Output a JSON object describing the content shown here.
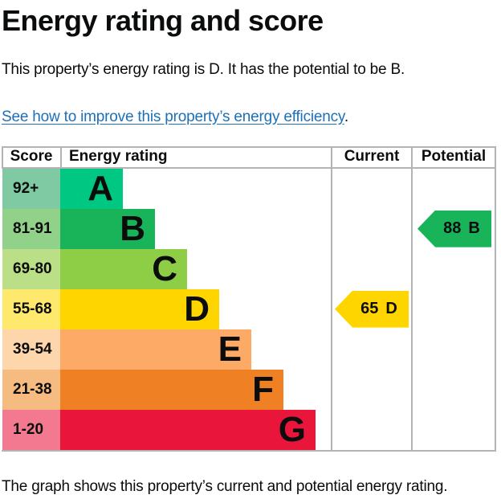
{
  "page": {
    "title": "Energy rating and score",
    "intro": "This property’s energy rating is D. It has the potential to be B.",
    "improve_link_text": "See how to improve this property’s energy efficiency",
    "improve_link_suffix": ".",
    "footer": "The graph shows this property’s current and potential energy rating."
  },
  "colors": {
    "text": "#0b0c0c",
    "link": "#1d70b8",
    "grid_border": "#b1b4b6"
  },
  "table_headers": {
    "score": "Score",
    "rating": "Energy rating",
    "current": "Current",
    "potential": "Potential"
  },
  "chart_data": {
    "type": "bar",
    "orientation": "horizontal",
    "title": "Energy rating and score",
    "columns": [
      "Score",
      "Energy rating",
      "Current",
      "Potential"
    ],
    "bands": [
      {
        "band": "A",
        "score_range": "92+",
        "bar_length": 78,
        "color": "#00c781",
        "score_color": "#7fcaa3"
      },
      {
        "band": "B",
        "score_range": "81-91",
        "bar_length": 118,
        "color": "#19b459",
        "score_color": "#92d189"
      },
      {
        "band": "C",
        "score_range": "69-80",
        "bar_length": 158,
        "color": "#8dce46",
        "score_color": "#badf86"
      },
      {
        "band": "D",
        "score_range": "55-68",
        "bar_length": 198,
        "color": "#ffd500",
        "score_color": "#ffe96d"
      },
      {
        "band": "E",
        "score_range": "39-54",
        "bar_length": 238,
        "color": "#fcaa65",
        "score_color": "#fdd6ac"
      },
      {
        "band": "F",
        "score_range": "21-38",
        "bar_length": 278,
        "color": "#ef8023",
        "score_color": "#f6bb81"
      },
      {
        "band": "G",
        "score_range": "1-20",
        "bar_length": 318,
        "color": "#e9153b",
        "score_color": "#f2798f"
      }
    ],
    "markers": [
      {
        "name": "Current",
        "value": "65",
        "band": "D",
        "row_index": 3,
        "color": "#ffd500"
      },
      {
        "name": "Potential",
        "value": "88",
        "band": "B",
        "row_index": 1,
        "color": "#19b459"
      }
    ]
  }
}
